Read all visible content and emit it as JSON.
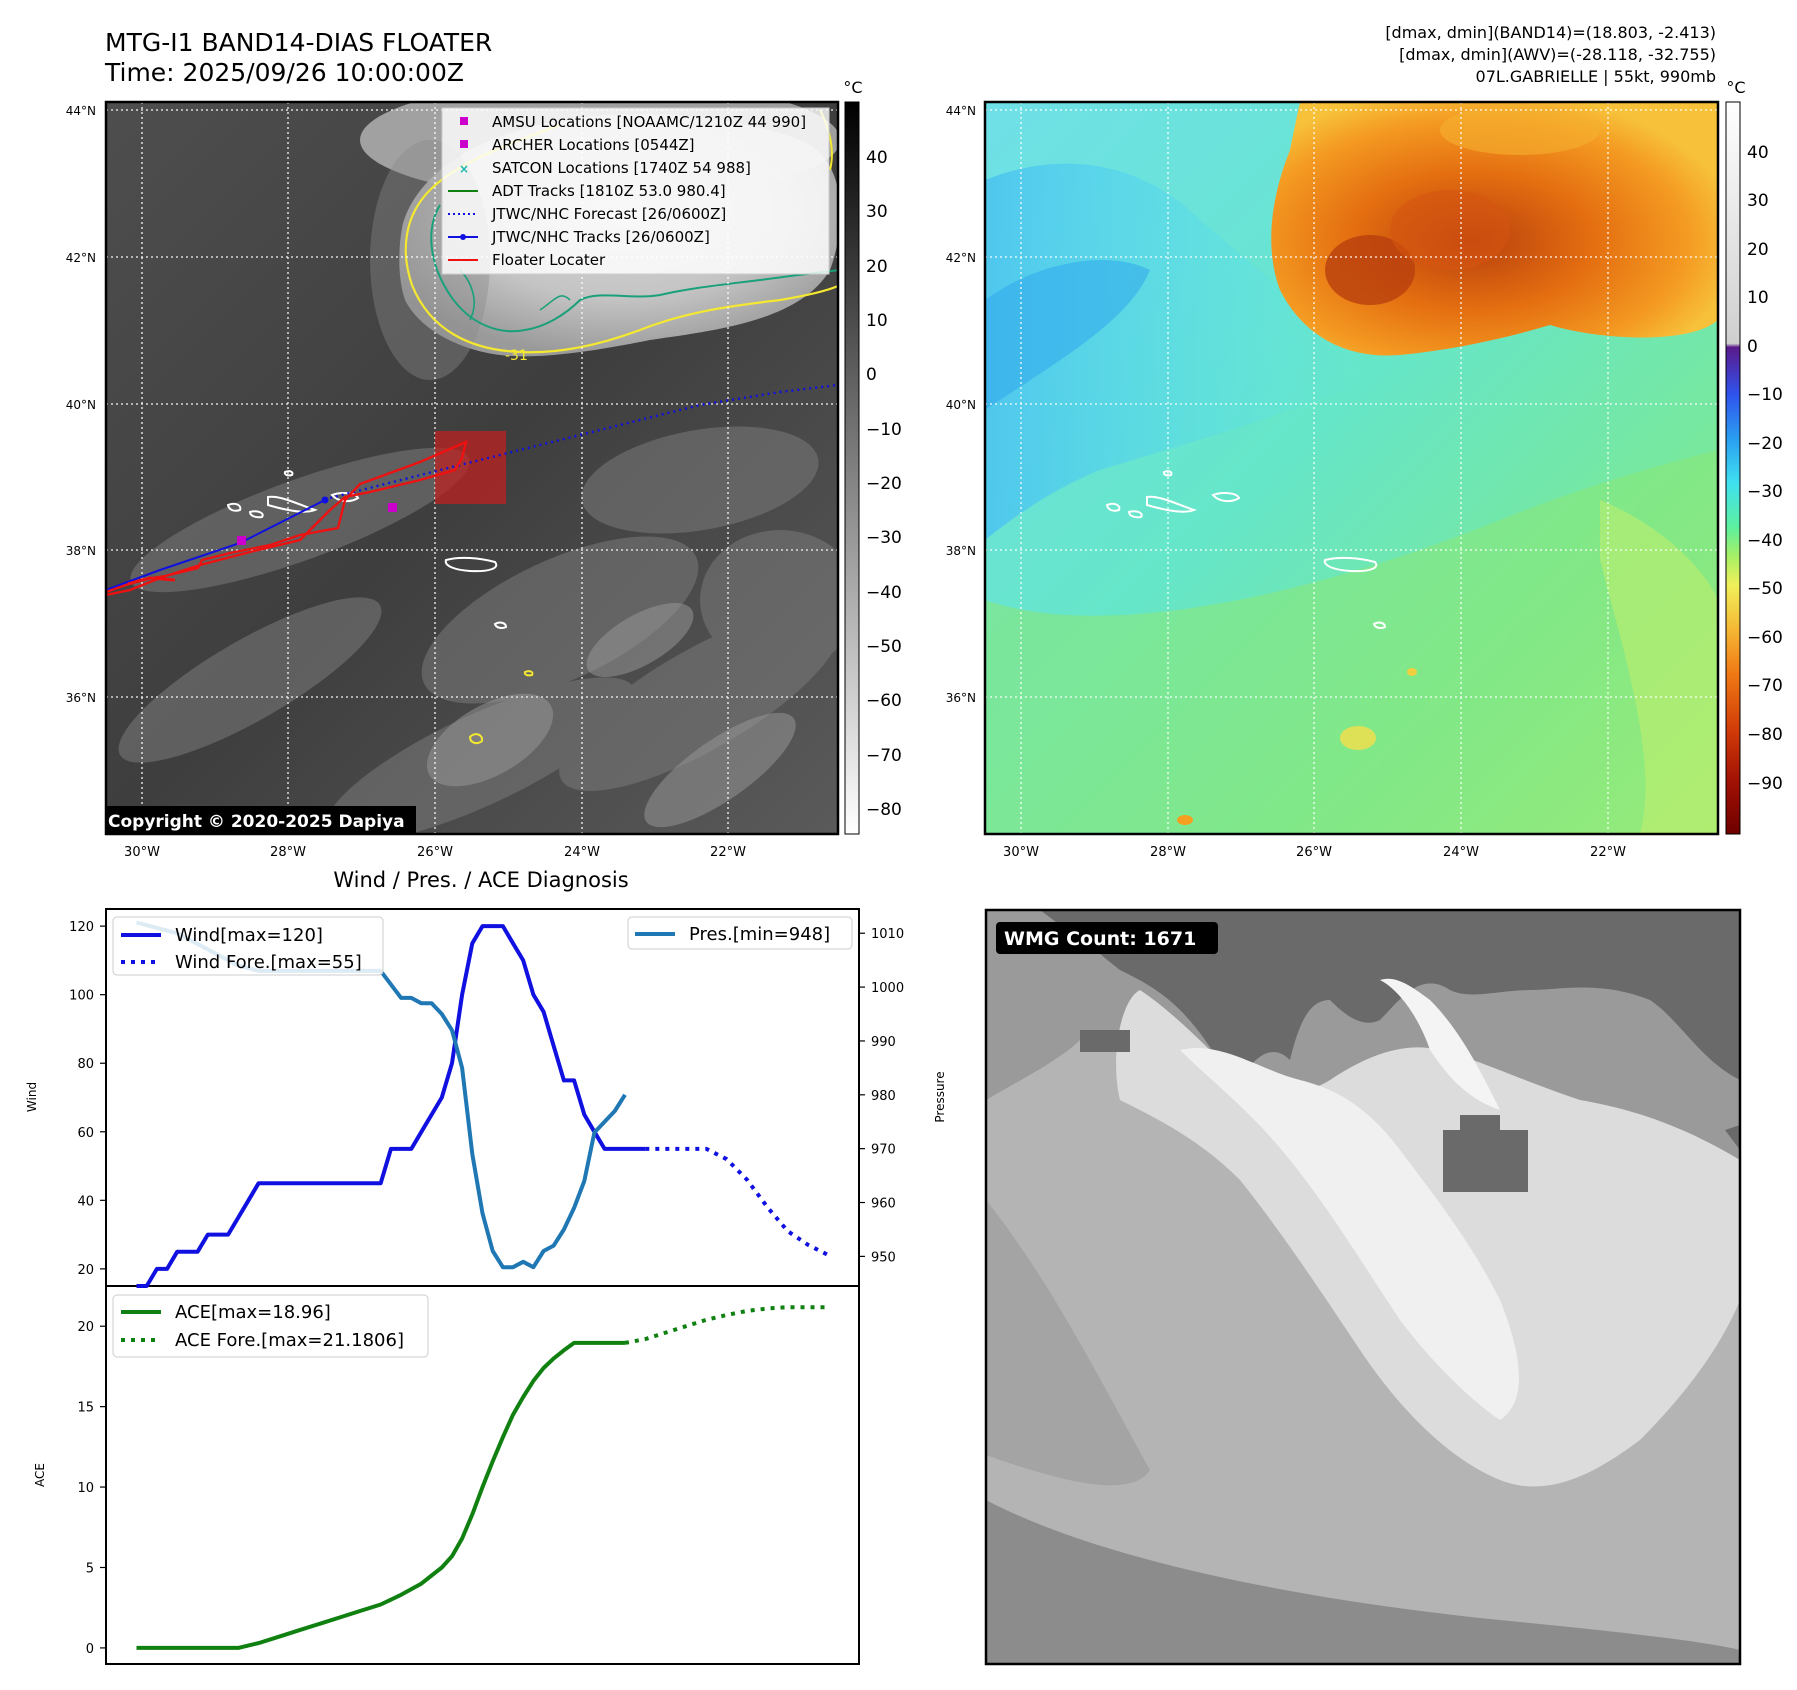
{
  "header": {
    "title": "MTG-I1 BAND14-DIAS FLOATER",
    "time": "Time: 2025/09/26 10:00:00Z",
    "info_band14": "[dmax, dmin](BAND14)=(18.803, -2.413)",
    "info_awv": "[dmax, dmin](AWV)=(-28.118, -32.755)",
    "storm": "07L.GABRIELLE | 55kt, 990mb"
  },
  "map": {
    "lat_labels": [
      "44°N",
      "42°N",
      "40°N",
      "38°N",
      "36°N"
    ],
    "lon_labels": [
      "30°W",
      "28°W",
      "26°W",
      "24°W",
      "22°W"
    ],
    "copyright": "Copyright © 2020-2025 Dapiya",
    "contour_label": "-31",
    "colorbar_unit": "°C",
    "gray_ticks": [
      "40",
      "30",
      "20",
      "10",
      "0",
      "−10",
      "−20",
      "−30",
      "−40",
      "−50",
      "−60",
      "−70",
      "−80"
    ],
    "color_ticks": [
      "40",
      "30",
      "20",
      "10",
      "0",
      "−10",
      "−20",
      "−30",
      "−40",
      "−50",
      "−60",
      "−70",
      "−80",
      "−90"
    ],
    "legend": [
      {
        "label": "AMSU Locations [NOAAMC/1210Z 44 990]",
        "color": "#cc00cc",
        "marker": "square"
      },
      {
        "label": "ARCHER Locations [0544Z]",
        "color": "#cc00cc",
        "marker": "square"
      },
      {
        "label": "SATCON Locations [1740Z 54 988]",
        "color": "#19b8b0",
        "marker": "x"
      },
      {
        "label": "ADT Tracks [1810Z 53.0 980.4]",
        "color": "#108010",
        "marker": "line"
      },
      {
        "label": "JTWC/NHC Forecast [26/0600Z]",
        "color": "#1010e0",
        "marker": "dotted"
      },
      {
        "label": "JTWC/NHC Tracks [26/0600Z]",
        "color": "#1010e0",
        "marker": "line-dot"
      },
      {
        "label": "Floater Locater",
        "color": "#ee1111",
        "marker": "line"
      }
    ]
  },
  "diagnosis": {
    "title": "Wind / Pres. / ACE Diagnosis",
    "wind_axis_label": "Wind",
    "pressure_axis_label": "Pressure",
    "ace_axis_label": "ACE",
    "legend_wind": "Wind[max=120]",
    "legend_wind_fore": "Wind Fore.[max=55]",
    "legend_pres": "Pres.[min=948]",
    "legend_ace": "ACE[max=18.96]",
    "legend_ace_fore": "ACE Fore.[max=21.1806]"
  },
  "wmg": {
    "label": "WMG Count: 1671"
  },
  "chart_data": [
    {
      "type": "line",
      "title": "Wind / Pres. / ACE Diagnosis",
      "xlabel": "",
      "ylabel": "Wind",
      "ylim": [
        15,
        125
      ],
      "yticks": [
        20,
        40,
        60,
        80,
        100,
        120
      ],
      "secondary_ylabel": "Pressure",
      "secondary_ylim": [
        944.5,
        1014.5
      ],
      "secondary_yticks": [
        950,
        960,
        970,
        980,
        990,
        1000,
        1010
      ],
      "series": [
        {
          "name": "Wind[max=120]",
          "axis": "left",
          "style": "solid",
          "color": "#1010e0",
          "x": [
            0,
            1,
            2,
            3,
            4,
            5,
            6,
            7,
            8,
            9,
            10,
            11,
            12,
            13,
            14,
            15,
            16,
            17,
            18,
            19,
            20,
            21,
            22,
            23,
            24,
            25,
            26,
            27,
            28,
            29,
            30,
            31,
            32,
            33,
            34,
            35,
            36,
            37,
            38,
            39,
            40,
            41,
            42,
            43,
            44,
            45,
            46,
            47,
            48,
            49,
            50
          ],
          "values": [
            15,
            15,
            20,
            20,
            25,
            25,
            25,
            30,
            30,
            30,
            35,
            40,
            45,
            45,
            45,
            45,
            45,
            45,
            45,
            45,
            45,
            45,
            45,
            45,
            45,
            55,
            55,
            55,
            60,
            65,
            70,
            80,
            100,
            115,
            120,
            120,
            120,
            115,
            110,
            100,
            95,
            85,
            75,
            75,
            65,
            60,
            55,
            55,
            55,
            55,
            55
          ]
        },
        {
          "name": "Wind Fore.[max=55]",
          "axis": "left",
          "style": "dotted",
          "color": "#1010e0",
          "x": [
            50,
            52,
            54,
            56,
            58,
            60,
            62,
            64,
            66,
            68
          ],
          "values": [
            55,
            55,
            55,
            55,
            52,
            46,
            38,
            31,
            27,
            24
          ]
        },
        {
          "name": "Pres.[min=948]",
          "axis": "right",
          "style": "solid",
          "color": "#1f77b4",
          "x": [
            0,
            2,
            4,
            6,
            8,
            10,
            12,
            14,
            16,
            18,
            20,
            22,
            24,
            26,
            27,
            28,
            29,
            30,
            31,
            32,
            33,
            34,
            35,
            36,
            37,
            38,
            39,
            40,
            41,
            42,
            43,
            44,
            45,
            46,
            47,
            48
          ],
          "values": [
            1012,
            1011,
            1010,
            1008,
            1006,
            1004,
            1003,
            1003,
            1003,
            1003,
            1003,
            1003,
            1003,
            998,
            998,
            997,
            997,
            995,
            992,
            985,
            969,
            958,
            951,
            948,
            948,
            949,
            948,
            951,
            952,
            955,
            959,
            964,
            973,
            975,
            977,
            980
          ]
        },
        {
          "name": "ACE[max=18.96]",
          "axis": "ace",
          "style": "solid",
          "color": "#108010",
          "x": [
            0,
            2,
            4,
            6,
            8,
            10,
            12,
            14,
            16,
            18,
            20,
            22,
            24,
            26,
            28,
            29,
            30,
            31,
            32,
            33,
            34,
            35,
            36,
            37,
            38,
            39,
            40,
            41,
            42,
            43,
            44,
            45,
            46,
            47,
            48
          ],
          "values": [
            0,
            0,
            0,
            0,
            0,
            0,
            0.3,
            0.7,
            1.1,
            1.5,
            1.9,
            2.3,
            2.7,
            3.3,
            4.0,
            4.5,
            5.0,
            5.7,
            6.8,
            8.3,
            10.0,
            11.6,
            13.1,
            14.5,
            15.6,
            16.6,
            17.4,
            18.0,
            18.5,
            18.96,
            18.96,
            18.96,
            18.96,
            18.96,
            18.96
          ]
        },
        {
          "name": "ACE Fore.[max=21.1806]",
          "axis": "ace",
          "style": "dotted",
          "color": "#108010",
          "x": [
            48,
            50,
            52,
            54,
            56,
            58,
            60,
            62,
            64,
            66,
            68
          ],
          "values": [
            18.96,
            19.2,
            19.6,
            20.0,
            20.4,
            20.7,
            20.95,
            21.1,
            21.18,
            21.18,
            21.18
          ]
        }
      ],
      "ace_ylim": [
        -1,
        22.5
      ],
      "ace_yticks": [
        0,
        5,
        10,
        15,
        20
      ]
    }
  ]
}
